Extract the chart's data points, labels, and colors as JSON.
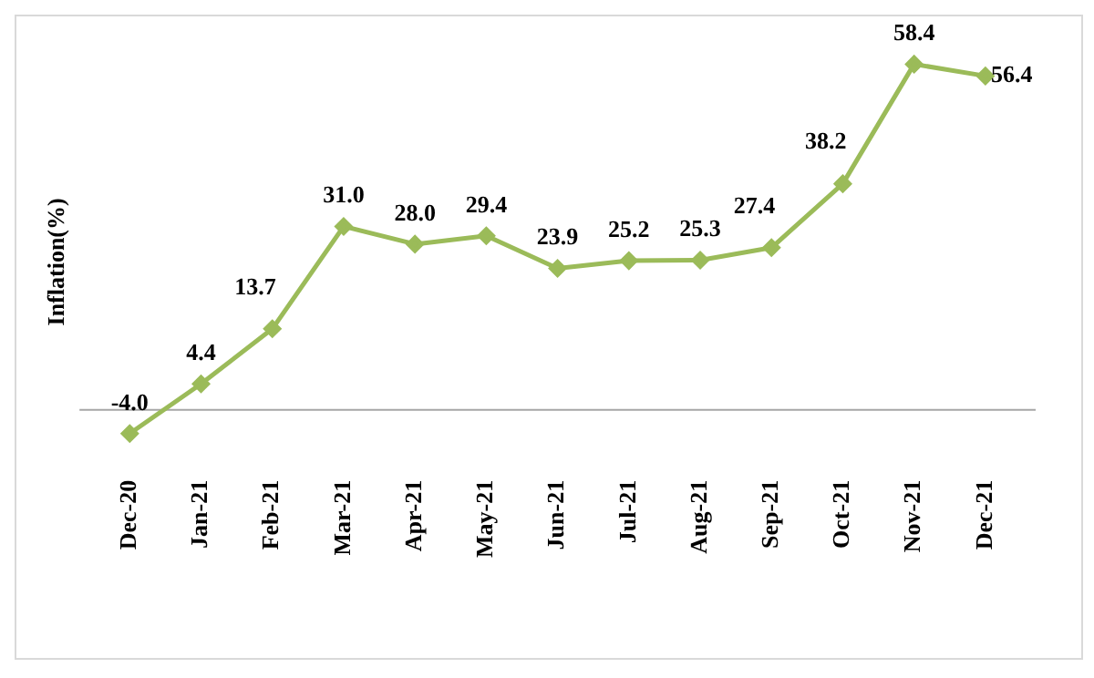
{
  "chart_data": {
    "type": "line",
    "ylabel": "Inflation(%)",
    "categories": [
      "Dec-20",
      "Jan-21",
      "Feb-21",
      "Mar-21",
      "Apr-21",
      "May-21",
      "Jun-21",
      "Jul-21",
      "Aug-21",
      "Sep-21",
      "Oct-21",
      "Nov-21",
      "Dec-21"
    ],
    "series": [
      {
        "color": "#9bbb59",
        "values": [
          -4.0,
          4.4,
          13.7,
          31.0,
          28.0,
          29.4,
          23.9,
          25.2,
          25.3,
          27.4,
          38.2,
          58.4,
          56.4
        ],
        "value_labels": [
          "-4.0",
          "4.4",
          "13.7",
          "31.0",
          "28.0",
          "29.4",
          "23.9",
          "25.2",
          "25.3",
          "27.4",
          "38.2",
          "58.4",
          "56.4"
        ]
      }
    ],
    "marker": "diamond",
    "grid": false,
    "legend": false
  }
}
